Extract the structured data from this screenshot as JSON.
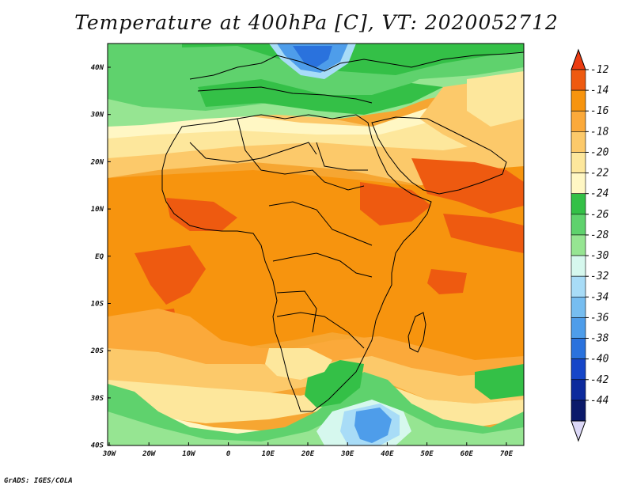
{
  "title": "Temperature at 400hPa [C], VT: 2020052712",
  "credit": "GrADS: IGES/COLA",
  "lat_ticks": [
    "40N",
    "30N",
    "20N",
    "10N",
    "EQ",
    "10S",
    "20S",
    "30S",
    "40S"
  ],
  "lon_ticks": [
    "30W",
    "20W",
    "10W",
    "0",
    "10E",
    "20E",
    "30E",
    "40E",
    "50E",
    "60E",
    "70E"
  ],
  "colorbar": {
    "labels": [
      "-12",
      "-14",
      "-16",
      "-18",
      "-20",
      "-22",
      "-24",
      "-26",
      "-28",
      "-30",
      "-32",
      "-34",
      "-36",
      "-38",
      "-40",
      "-42",
      "-44"
    ],
    "colors": [
      "#ee5a10",
      "#f7940e",
      "#fba93a",
      "#fcc96a",
      "#fde79c",
      "#fff7c4",
      "#34c047",
      "#5fd26d",
      "#96e592",
      "#d6f8ee",
      "#a8dcf7",
      "#76bdf0",
      "#4e9dea",
      "#2a72dd",
      "#1646c8",
      "#0c2a9c",
      "#0b1a6a"
    ],
    "top_color": "#ec3c12",
    "bottom_color": "#dcd8f7"
  },
  "fill_colors": {
    "ocean_base": "#f6a632",
    "warm_orange": "#f7940e",
    "red_orange": "#ee5a10",
    "light_orange": "#fba93a",
    "yellow": "#fcc96a",
    "pale_yellow": "#fde79c",
    "cream": "#fff7c4",
    "green": "#34c047",
    "mid_green": "#5fd26d",
    "light_green": "#96e592",
    "pale_cyan": "#d6f8ee",
    "light_blue": "#a8dcf7",
    "mid_blue": "#4e9dea",
    "dark_blue": "#2a72dd"
  }
}
